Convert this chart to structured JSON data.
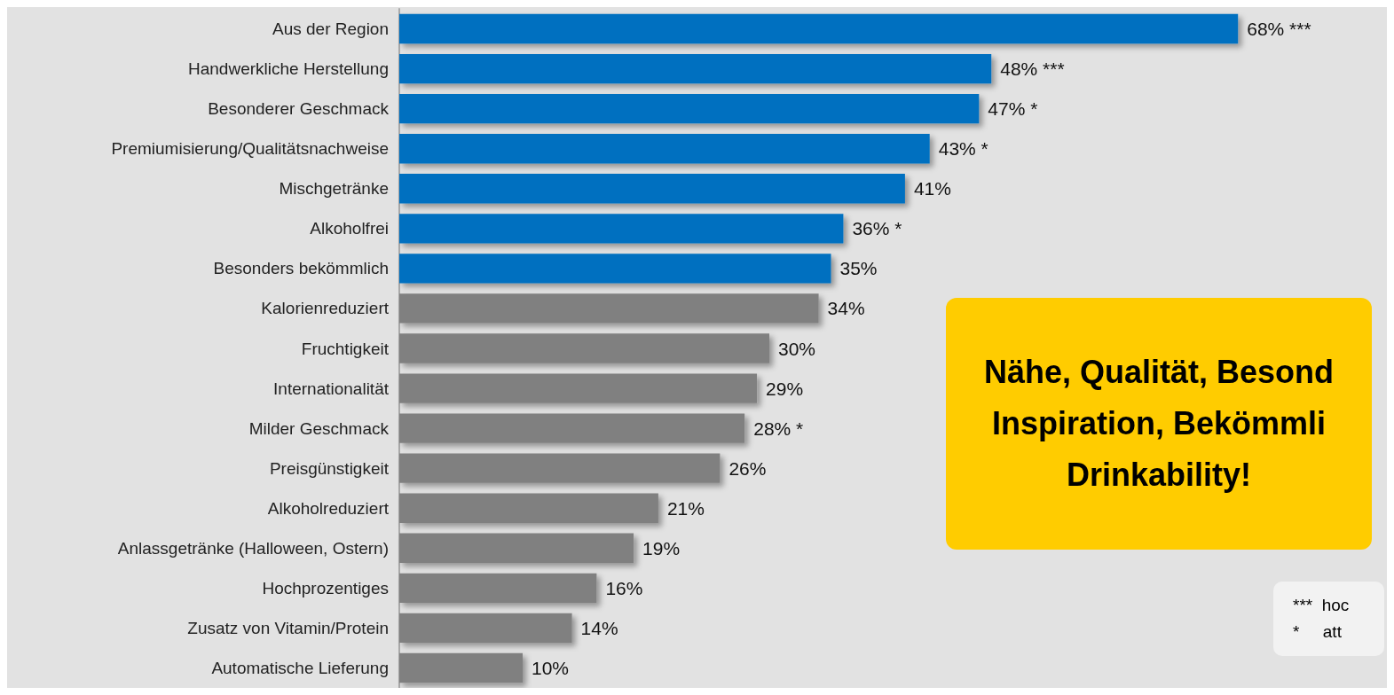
{
  "chart_data": {
    "type": "bar",
    "orientation": "horizontal",
    "categories": [
      "Aus der Region",
      "Handwerkliche Herstellung",
      "Besonderer Geschmack",
      "Premiumisierung/Qualitätsnachweise",
      "Mischgetränke",
      "Alkoholfrei",
      "Besonders bekömmlich",
      "Kalorienreduziert",
      "Fruchtigkeit",
      "Internationalität",
      "Milder Geschmack",
      "Preisgünstigkeit",
      "Alkoholreduziert",
      "Anlassgetränke (Halloween, Ostern)",
      "Hochprozentiges",
      "Zusatz von Vitamin/Protein",
      "Automatische Lieferung"
    ],
    "values": [
      68,
      48,
      47,
      43,
      41,
      36,
      35,
      34,
      30,
      29,
      28,
      26,
      21,
      19,
      16,
      14,
      10
    ],
    "colors": [
      "#0070c0",
      "#0070c0",
      "#0070c0",
      "#0070c0",
      "#0070c0",
      "#0070c0",
      "#0070c0",
      "#808080",
      "#808080",
      "#808080",
      "#808080",
      "#808080",
      "#808080",
      "#808080",
      "#808080",
      "#808080",
      "#808080"
    ],
    "value_labels": [
      "68% ***",
      "48% ***",
      "47% *",
      "43% *",
      "41%",
      "36% *",
      "35%",
      "34%",
      "30%",
      "29%",
      "28% *",
      "26%",
      "21%",
      "19%",
      "16%",
      "14%",
      "10%"
    ],
    "annotations": [
      "Nähe, Qualität, Besond",
      "Inspiration, Bekömmli",
      "Drinkability!",
      "***  hoc",
      "*     att"
    ]
  }
}
